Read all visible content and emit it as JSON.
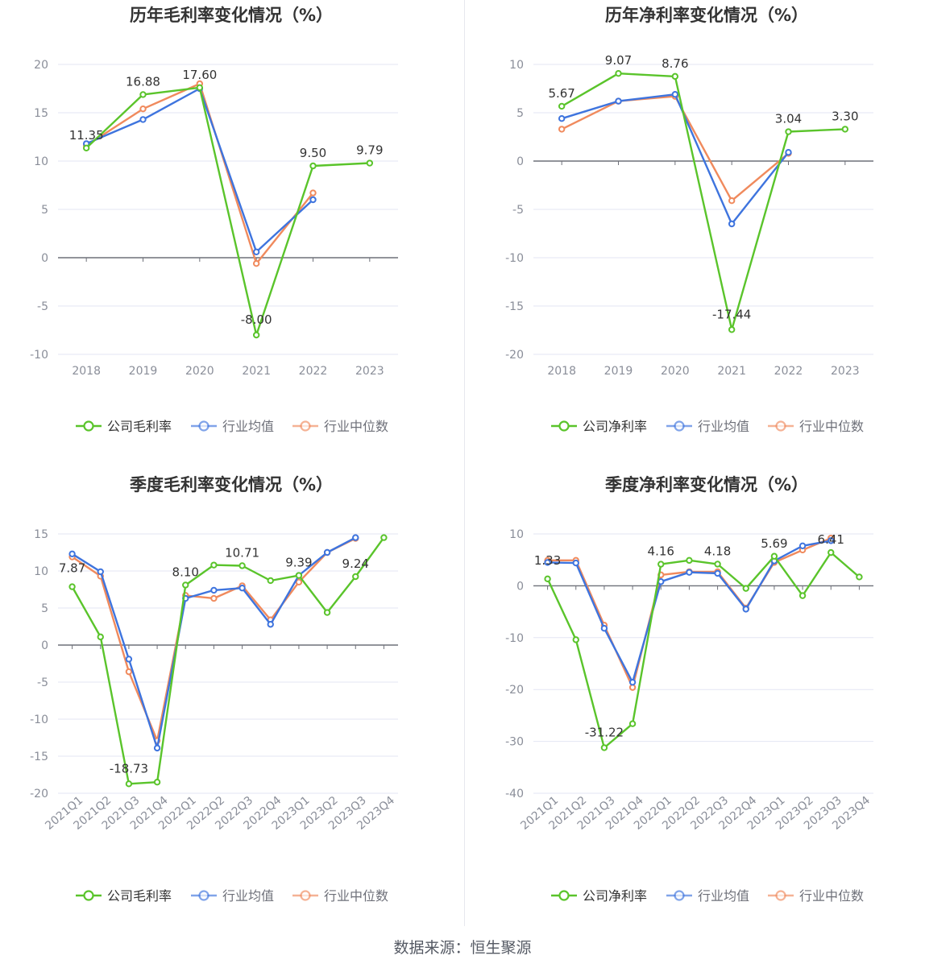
{
  "colors": {
    "company": "#5ac42b",
    "avg": "#3e74de",
    "median": "#f08a5d",
    "grid": "#e3e6f3",
    "axis": "#6e7079",
    "label": "#333333",
    "tick": "#8a8e99"
  },
  "source": "数据来源：恒生聚源",
  "chart_data": [
    {
      "type": "line",
      "title": "历年毛利率变化情况（%）",
      "categories": [
        "2018",
        "2019",
        "2020",
        "2021",
        "2022",
        "2023"
      ],
      "ylim": [
        -10,
        20
      ],
      "yticks": [
        "-10",
        "-5",
        "0",
        "5",
        "10",
        "15",
        "20"
      ],
      "grid": true,
      "legend_position": "bottom",
      "series": [
        {
          "name": "公司毛利率",
          "values": [
            11.35,
            16.88,
            17.6,
            -8.0,
            9.5,
            9.79
          ],
          "labels": [
            "11.35",
            "16.88",
            "17.60",
            "-8.00",
            "9.50",
            "9.79"
          ]
        },
        {
          "name": "行业均值",
          "values": [
            11.8,
            14.3,
            17.5,
            0.6,
            6.0,
            null
          ]
        },
        {
          "name": "行业中位数",
          "values": [
            11.6,
            15.4,
            18.0,
            -0.6,
            6.7,
            null
          ]
        }
      ]
    },
    {
      "type": "line",
      "title": "历年净利率变化情况（%）",
      "categories": [
        "2018",
        "2019",
        "2020",
        "2021",
        "2022",
        "2023"
      ],
      "ylim": [
        -20,
        10
      ],
      "yticks": [
        "-20",
        "-15",
        "-10",
        "-5",
        "0",
        "5",
        "10"
      ],
      "grid": true,
      "legend_position": "bottom",
      "series": [
        {
          "name": "公司净利率",
          "values": [
            5.67,
            9.07,
            8.76,
            -17.44,
            3.04,
            3.3
          ],
          "labels": [
            "5.67",
            "9.07",
            "8.76",
            "-17.44",
            "3.04",
            "3.30"
          ]
        },
        {
          "name": "行业均值",
          "values": [
            4.4,
            6.2,
            6.9,
            -6.5,
            0.9,
            null
          ]
        },
        {
          "name": "行业中位数",
          "values": [
            3.3,
            6.2,
            6.7,
            -4.1,
            0.8,
            null
          ]
        }
      ]
    },
    {
      "type": "line",
      "title": "季度毛利率变化情况（%）",
      "categories": [
        "2021Q1",
        "2021Q2",
        "2021Q3",
        "2021Q4",
        "2022Q1",
        "2022Q2",
        "2022Q3",
        "2022Q4",
        "2023Q1",
        "2023Q2",
        "2023Q3",
        "2023Q4"
      ],
      "ylim": [
        -20,
        15
      ],
      "yticks": [
        "-20",
        "-15",
        "-10",
        "-5",
        "0",
        "5",
        "10",
        "15"
      ],
      "grid": true,
      "legend_position": "bottom",
      "series": [
        {
          "name": "公司毛利率",
          "values": [
            7.87,
            1.1,
            -18.73,
            -18.5,
            8.1,
            10.8,
            10.71,
            8.7,
            9.39,
            4.4,
            9.24,
            14.5
          ],
          "labels": [
            "7.87",
            "",
            "-18.73",
            "",
            "8.10",
            "",
            "10.71",
            "",
            "9.39",
            "",
            "9.24",
            ""
          ]
        },
        {
          "name": "行业均值",
          "values": [
            12.3,
            9.9,
            -1.9,
            -13.9,
            6.3,
            7.4,
            7.7,
            2.8,
            9.4,
            12.5,
            14.5,
            null
          ]
        },
        {
          "name": "行业中位数",
          "values": [
            11.9,
            9.3,
            -3.6,
            -12.9,
            6.7,
            6.3,
            8.0,
            3.4,
            8.5,
            12.5,
            14.4,
            null
          ]
        }
      ]
    },
    {
      "type": "line",
      "title": "季度净利率变化情况（%）",
      "categories": [
        "2021Q1",
        "2021Q2",
        "2021Q3",
        "2021Q4",
        "2022Q1",
        "2022Q2",
        "2022Q3",
        "2022Q4",
        "2023Q1",
        "2023Q2",
        "2023Q3",
        "2023Q4"
      ],
      "ylim": [
        -40,
        10
      ],
      "yticks": [
        "-40",
        "-30",
        "-20",
        "-10",
        "0",
        "10"
      ],
      "grid": true,
      "legend_position": "bottom",
      "series": [
        {
          "name": "公司净利率",
          "values": [
            1.33,
            -10.4,
            -31.22,
            -26.6,
            4.16,
            4.9,
            4.18,
            -0.5,
            5.69,
            -1.9,
            6.41,
            1.7
          ],
          "labels": [
            "1.33",
            "",
            "-31.22",
            "",
            "4.16",
            "",
            "4.18",
            "",
            "5.69",
            "",
            "6.41",
            ""
          ]
        },
        {
          "name": "行业均值",
          "values": [
            4.5,
            4.4,
            -8.2,
            -18.6,
            0.8,
            2.6,
            2.4,
            -4.5,
            4.8,
            7.7,
            8.7,
            null
          ]
        },
        {
          "name": "行业中位数",
          "values": [
            4.9,
            4.9,
            -7.6,
            -19.6,
            2.1,
            2.7,
            2.7,
            -4.3,
            4.5,
            6.9,
            9.2,
            null
          ]
        }
      ]
    }
  ]
}
